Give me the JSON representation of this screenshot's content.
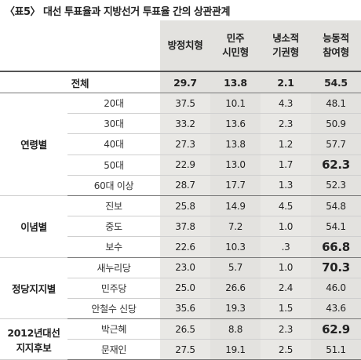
{
  "title": "〈표5〉 대선 투표율과 지방선거 투표율 간의 상관관계",
  "columns": [
    "방정치형",
    "민주\n시민형",
    "냉소적\n기권형",
    "능동적\n참여형"
  ],
  "total": {
    "label": "전체",
    "values": [
      "29.7",
      "13.8",
      "2.1",
      "54.5"
    ]
  },
  "groups": [
    {
      "label": "연령별",
      "rows": [
        {
          "label": "20대",
          "values": [
            "37.5",
            "10.1",
            "4.3",
            "48.1"
          ]
        },
        {
          "label": "30대",
          "values": [
            "33.2",
            "13.6",
            "2.3",
            "50.9"
          ]
        },
        {
          "label": "40대",
          "values": [
            "27.3",
            "13.8",
            "1.2",
            "57.7"
          ]
        },
        {
          "label": "50대",
          "values": [
            "22.9",
            "13.0",
            "1.7",
            "62.3"
          ],
          "strong": true
        },
        {
          "label": "60대 이상",
          "values": [
            "28.7",
            "17.7",
            "1.3",
            "52.3"
          ]
        }
      ]
    },
    {
      "label": "이념별",
      "rows": [
        {
          "label": "진보",
          "values": [
            "25.8",
            "14.9",
            "4.5",
            "54.8"
          ]
        },
        {
          "label": "중도",
          "values": [
            "37.8",
            "7.2",
            "1.0",
            "54.1"
          ]
        },
        {
          "label": "보수",
          "values": [
            "22.6",
            "10.3",
            ".3",
            "66.8"
          ],
          "strong": true
        }
      ]
    },
    {
      "label": "정당지지별",
      "rows": [
        {
          "label": "새누리당",
          "values": [
            "23.0",
            "5.7",
            "1.0",
            "70.3"
          ],
          "strong": true
        },
        {
          "label": "민주당",
          "values": [
            "25.0",
            "26.6",
            "2.4",
            "46.0"
          ]
        },
        {
          "label": "안철수 신당",
          "values": [
            "35.6",
            "19.3",
            "1.5",
            "43.6"
          ]
        }
      ]
    },
    {
      "label": "2012년대선\n지지후보",
      "rows": [
        {
          "label": "박근혜",
          "values": [
            "26.5",
            "8.8",
            "2.3",
            "62.9"
          ],
          "strong": true
        },
        {
          "label": "문재인",
          "values": [
            "27.5",
            "19.1",
            "2.5",
            "51.1"
          ]
        }
      ]
    }
  ]
}
